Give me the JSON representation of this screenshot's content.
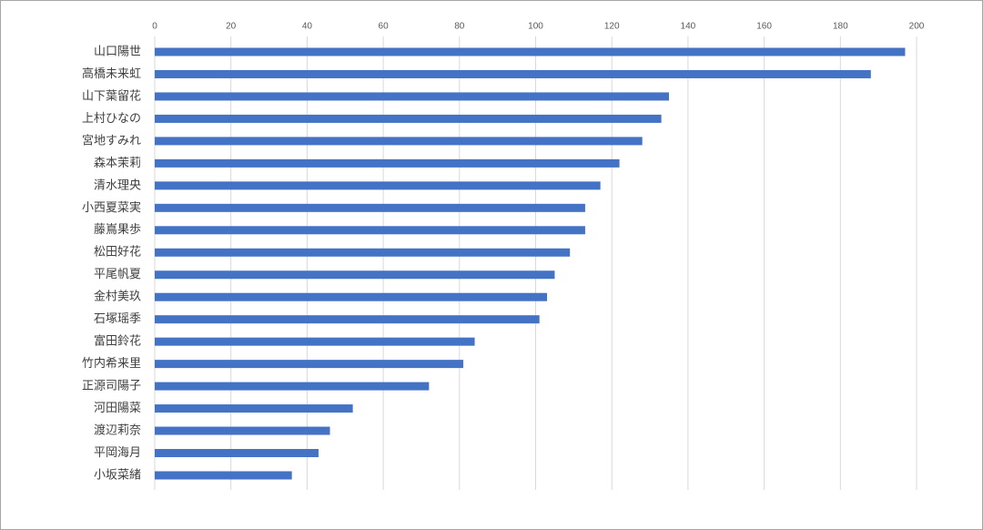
{
  "chart_data": {
    "type": "bar",
    "orientation": "horizontal",
    "categories": [
      "山口陽世",
      "高橋未来虹",
      "山下葉留花",
      "上村ひなの",
      "宮地すみれ",
      "森本茉莉",
      "清水理央",
      "小西夏菜実",
      "藤嶌果歩",
      "松田好花",
      "平尾帆夏",
      "金村美玖",
      "石塚瑶季",
      "富田鈴花",
      "竹内希来里",
      "正源司陽子",
      "河田陽菜",
      "渡辺莉奈",
      "平岡海月",
      "小坂菜緒"
    ],
    "values": [
      197,
      188,
      135,
      133,
      128,
      122,
      117,
      113,
      113,
      109,
      105,
      103,
      101,
      84,
      81,
      72,
      52,
      46,
      43,
      36
    ],
    "color": "#4472c4",
    "xlim": [
      0,
      200
    ],
    "xticks": [
      0,
      20,
      40,
      60,
      80,
      100,
      120,
      140,
      160,
      180,
      200
    ],
    "grid": true
  }
}
